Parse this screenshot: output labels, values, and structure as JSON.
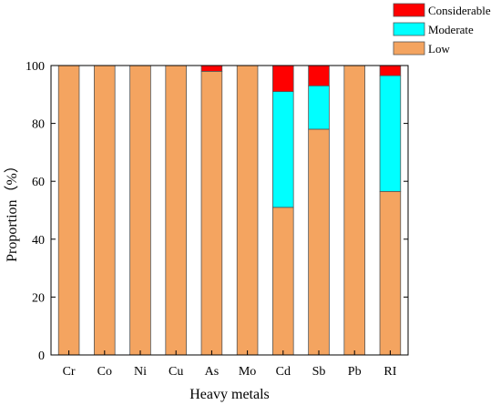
{
  "chart_data": {
    "type": "bar",
    "stacked": true,
    "categories": [
      "Cr",
      "Co",
      "Ni",
      "Cu",
      "As",
      "Mo",
      "Cd",
      "Sb",
      "Pb",
      "RI"
    ],
    "series": [
      {
        "name": "Low",
        "color": "#F4A460",
        "values": [
          100,
          100,
          100,
          100,
          98,
          100,
          51,
          78,
          100,
          56.5
        ]
      },
      {
        "name": "Moderate",
        "color": "#00FFFF",
        "values": [
          0,
          0,
          0,
          0,
          0,
          0,
          40,
          15,
          0,
          40
        ]
      },
      {
        "name": "Considerable",
        "color": "#FF0000",
        "values": [
          0,
          0,
          0,
          0,
          2,
          0,
          9,
          7,
          0,
          3.5
        ]
      }
    ],
    "legend_order": [
      "Considerable",
      "Moderate",
      "Low"
    ],
    "xlabel": "Heavy metals",
    "ylabel": "Proportion（%）",
    "ylim": [
      0,
      100
    ],
    "yticks": [
      0,
      20,
      40,
      60,
      80,
      100
    ],
    "grid": false,
    "legend_position": "top-right"
  }
}
